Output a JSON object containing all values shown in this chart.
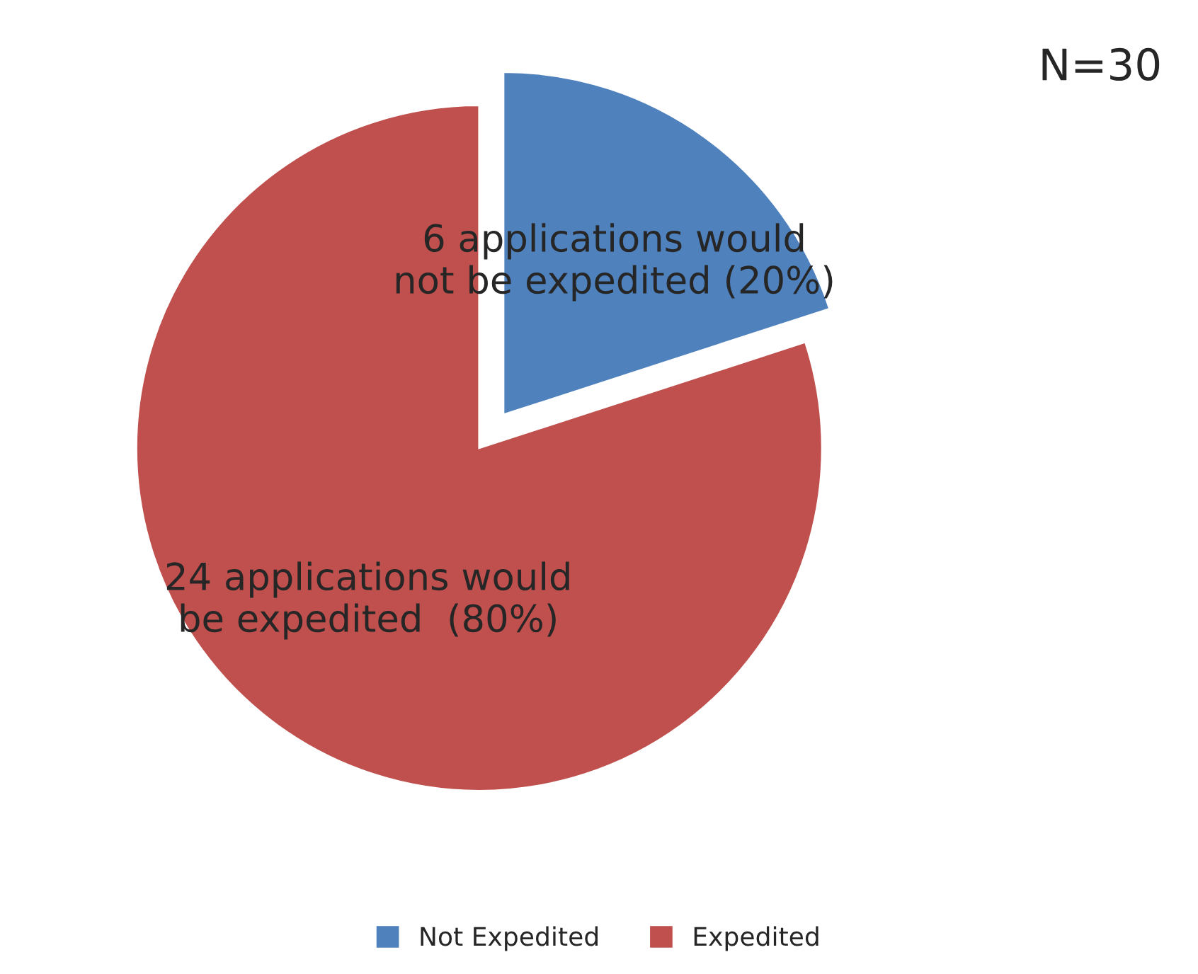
{
  "chart_data": {
    "type": "pie",
    "categories": [
      "Not Expedited",
      "Expedited"
    ],
    "values": [
      6,
      24
    ],
    "colors": [
      "#4f81bd",
      "#c0504d"
    ],
    "value_labels": [
      "6 applications would\nnot be expedited (20%)",
      "24 applications would\nbe expedited  (80%)"
    ],
    "annotations": [
      "N=30"
    ],
    "legend": "bottom"
  }
}
